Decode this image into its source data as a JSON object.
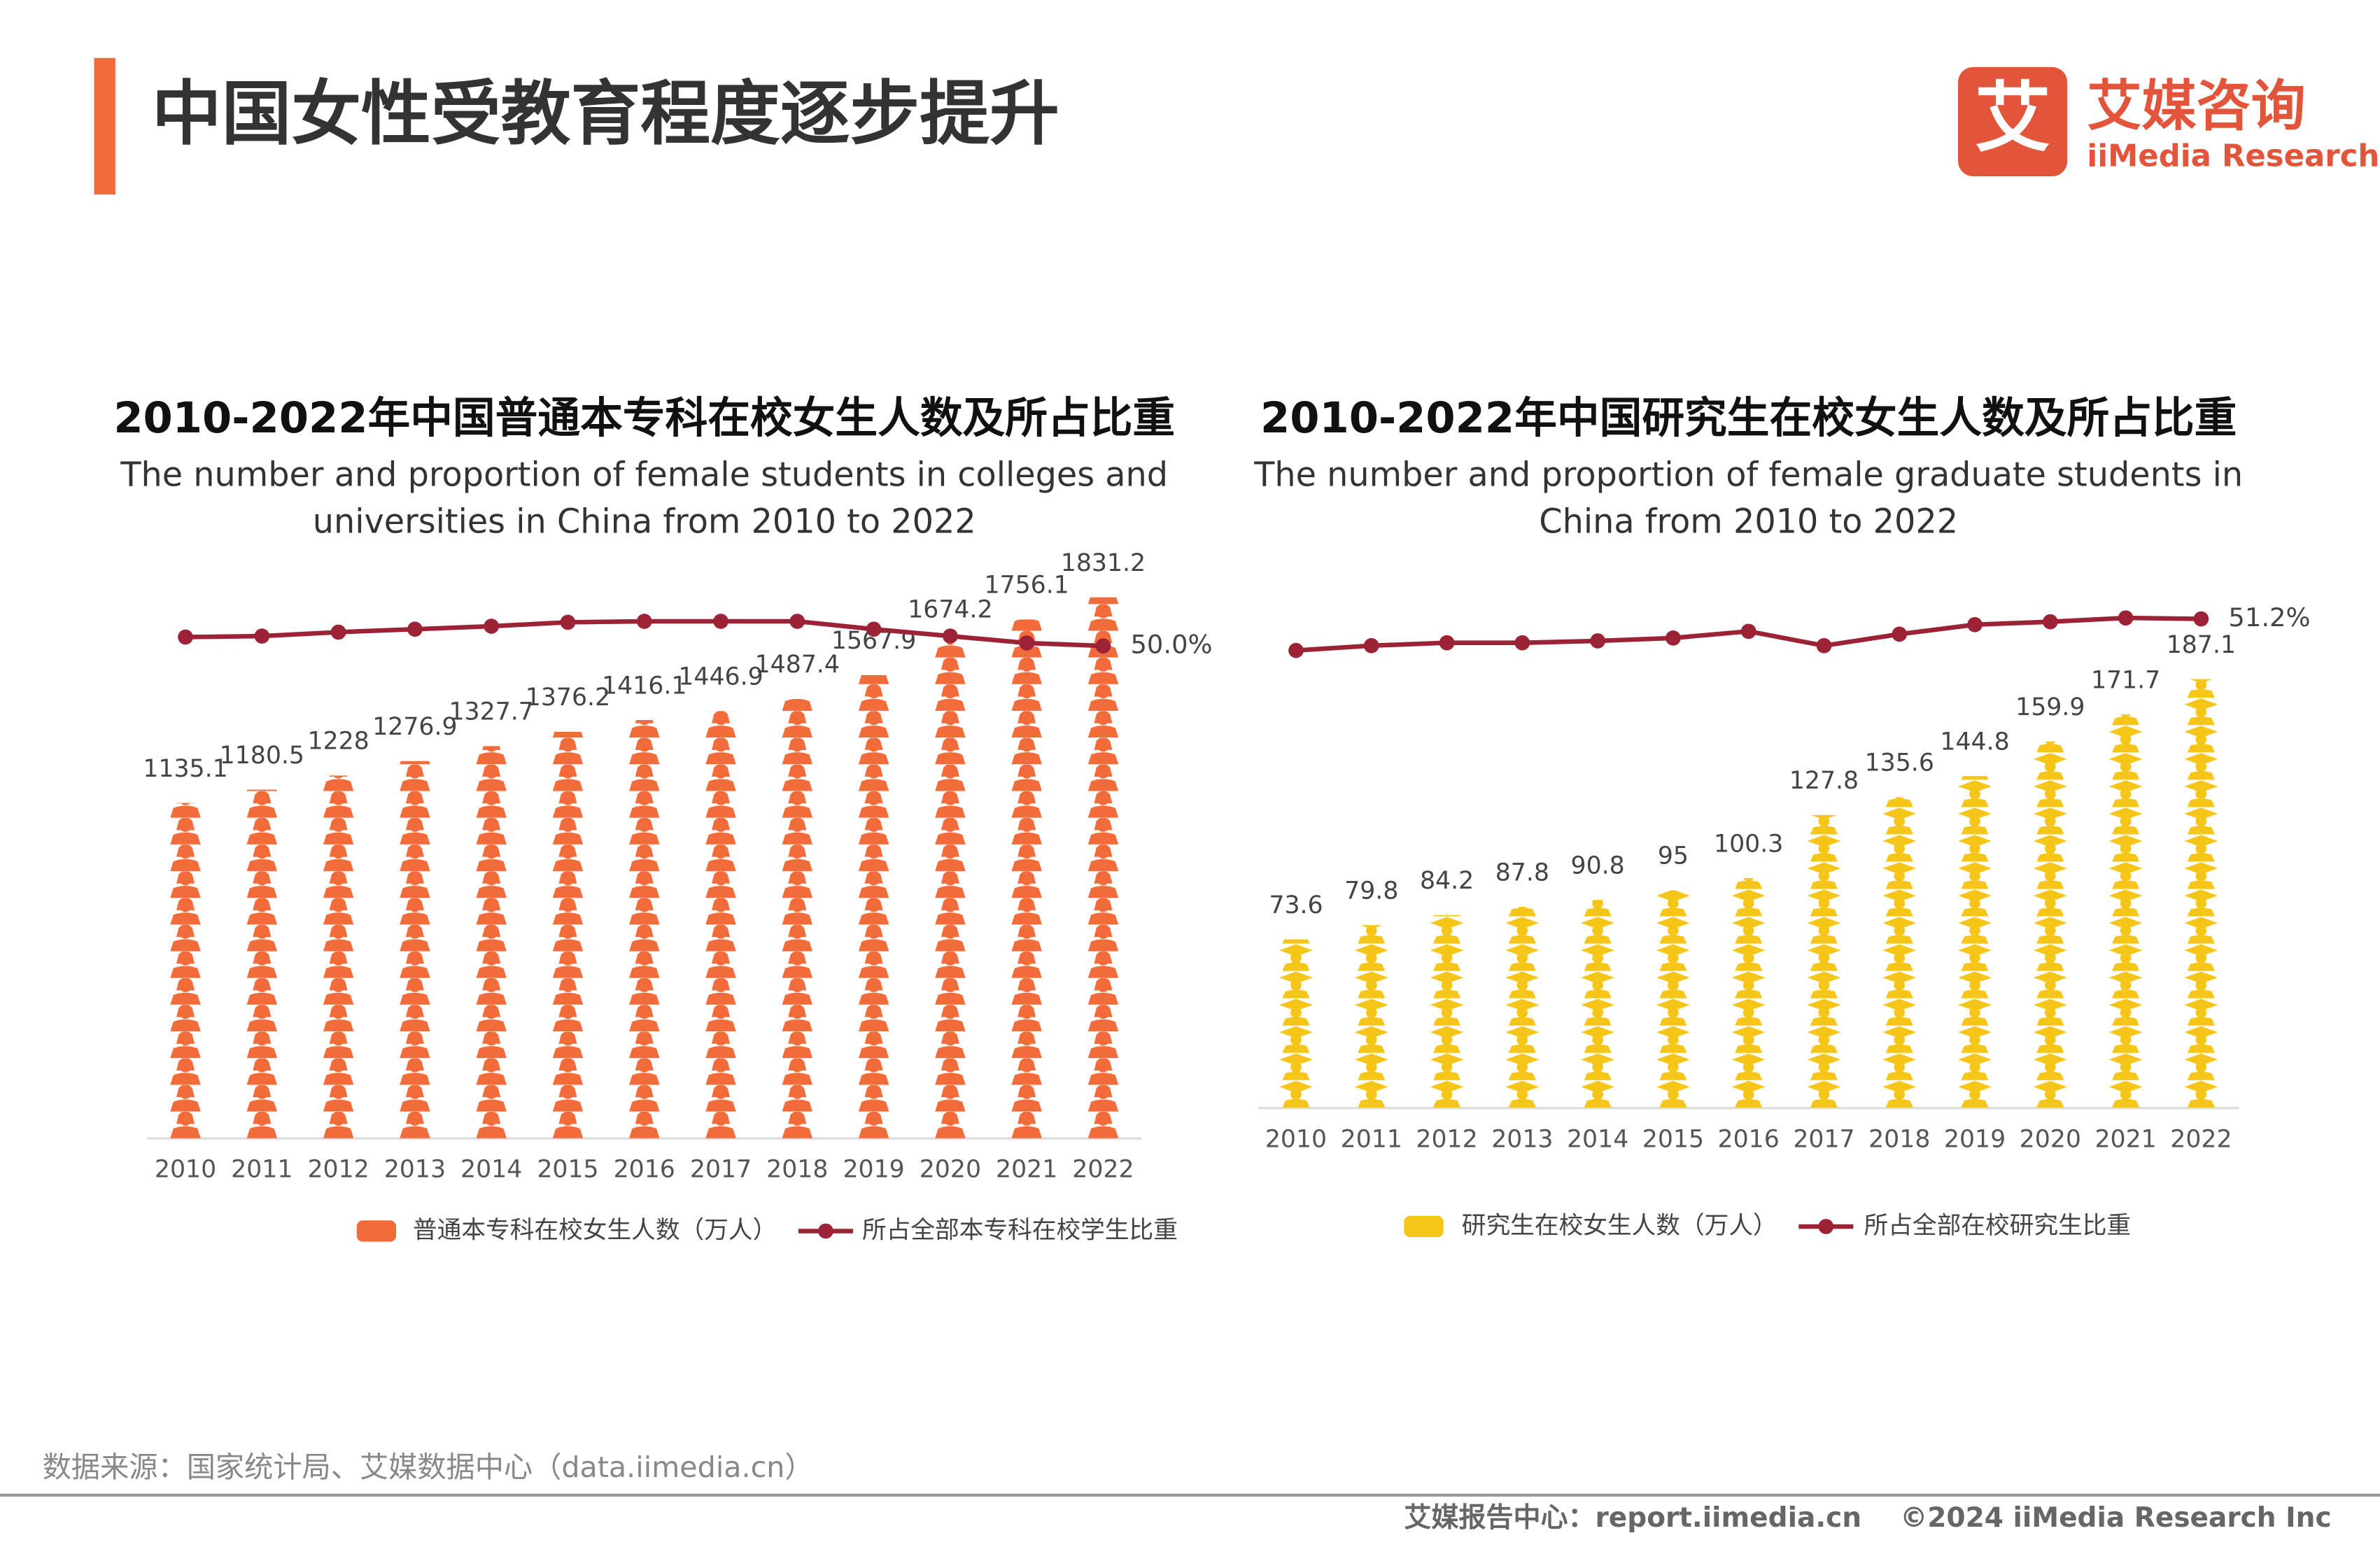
{
  "header": {
    "title": "中国女性受教育程度逐步提升",
    "logo_mark": "艾",
    "logo_cn": "艾媒咨询",
    "logo_en": "iiMedia Research"
  },
  "chart_data": [
    {
      "type": "bar",
      "title": "2010-2022年中国普通本专科在校女生人数及所占比重",
      "subtitle": "The number and proportion of female students in colleges and universities in China from 2010 to 2022",
      "categories": [
        "2010",
        "2011",
        "2012",
        "2013",
        "2014",
        "2015",
        "2016",
        "2017",
        "2018",
        "2019",
        "2020",
        "2021",
        "2022"
      ],
      "series": [
        {
          "name": "普通本专科在校女生人数（万人）",
          "color": "#f26b3a",
          "values": [
            1135.1,
            1180.5,
            1228,
            1276.9,
            1327.7,
            1376.2,
            1416.1,
            1446.9,
            1487.4,
            1567.9,
            1674.2,
            1756.1,
            1831.2
          ]
        },
        {
          "name": "所占全部本专科在校学生比重",
          "type": "line",
          "axis": "y2",
          "color": "#9b2335",
          "values": [
            50.9,
            51.0,
            51.4,
            51.7,
            52.0,
            52.4,
            52.5,
            52.5,
            52.5,
            51.7,
            51.0,
            50.3,
            50.0
          ],
          "value_labels": [
            null,
            null,
            null,
            null,
            null,
            null,
            null,
            null,
            null,
            null,
            null,
            null,
            "50.0%"
          ]
        }
      ],
      "ylim": [
        0,
        1900
      ],
      "y2lim": [
        0,
        57
      ]
    },
    {
      "type": "bar",
      "title": "2010-2022年中国研究生在校女生人数及所占比重",
      "subtitle": "The number and proportion of female graduate students in China from 2010 to 2022",
      "categories": [
        "2010",
        "2011",
        "2012",
        "2013",
        "2014",
        "2015",
        "2016",
        "2017",
        "2018",
        "2019",
        "2020",
        "2021",
        "2022"
      ],
      "series": [
        {
          "name": "研究生在校女生人数（万人）",
          "color": "#f5c518",
          "values": [
            73.6,
            79.8,
            84.2,
            87.8,
            90.8,
            95,
            100.3,
            127.8,
            135.6,
            144.8,
            159.9,
            171.7,
            187.1
          ]
        },
        {
          "name": "所占全部在校研究生比重",
          "type": "line",
          "axis": "y2",
          "color": "#9b2335",
          "values": [
            47.9,
            48.4,
            48.7,
            48.7,
            48.9,
            49.2,
            49.9,
            48.4,
            49.6,
            50.6,
            50.9,
            51.3,
            51.2
          ],
          "value_labels": [
            null,
            null,
            null,
            null,
            null,
            null,
            null,
            null,
            null,
            null,
            null,
            null,
            "51.2%"
          ]
        }
      ],
      "ylim": [
        0,
        225
      ],
      "y2lim": [
        0,
        54
      ]
    }
  ],
  "source": "数据来源：国家统计局、艾媒数据中心（data.iimedia.cn）",
  "footer": {
    "site": "艾媒报告中心：report.iimedia.cn",
    "copyright": "©2024 iiMedia Research Inc"
  }
}
